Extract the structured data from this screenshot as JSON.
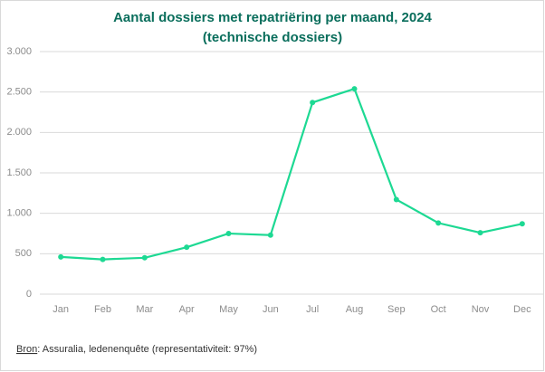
{
  "chart_data": {
    "type": "line",
    "title": "Aantal dossiers met repatriëring per maand, 2024",
    "subtitle": "(technische dossiers)",
    "categories": [
      "Jan",
      "Feb",
      "Mar",
      "Apr",
      "May",
      "Jun",
      "Jul",
      "Aug",
      "Sep",
      "Oct",
      "Nov",
      "Dec"
    ],
    "series": [
      {
        "name": "Dossiers",
        "color": "#1dd993",
        "values": [
          460,
          430,
          450,
          580,
          750,
          730,
          2370,
          2540,
          1170,
          880,
          760,
          870
        ]
      }
    ],
    "ylim": [
      0,
      3000
    ],
    "yticks": [
      0,
      500,
      {
        "value": 1000,
        "label": "1.000"
      },
      {
        "value": 1500,
        "label": "1.500"
      },
      {
        "value": 2000,
        "label": "2.000"
      },
      {
        "value": 2500,
        "label": "2.500"
      },
      {
        "value": 3000,
        "label": "3.000"
      }
    ],
    "grid": true,
    "source_label": "Bron",
    "source": ": Assuralia, ledenenquête (representativiteit: 97%)"
  }
}
